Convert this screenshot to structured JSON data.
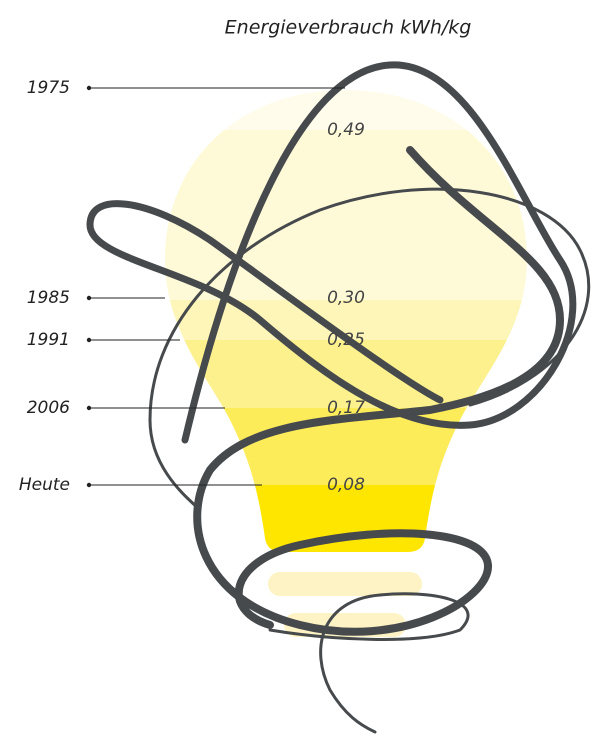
{
  "title": "Energieverbrauch kWh/kg",
  "rows": [
    {
      "year": "1975",
      "value": "0,49"
    },
    {
      "year": "1985",
      "value": "0,30"
    },
    {
      "year": "1991",
      "value": "0,25"
    },
    {
      "year": "2006",
      "value": "0,17"
    },
    {
      "year": "Heute",
      "value": "0,08"
    }
  ]
}
